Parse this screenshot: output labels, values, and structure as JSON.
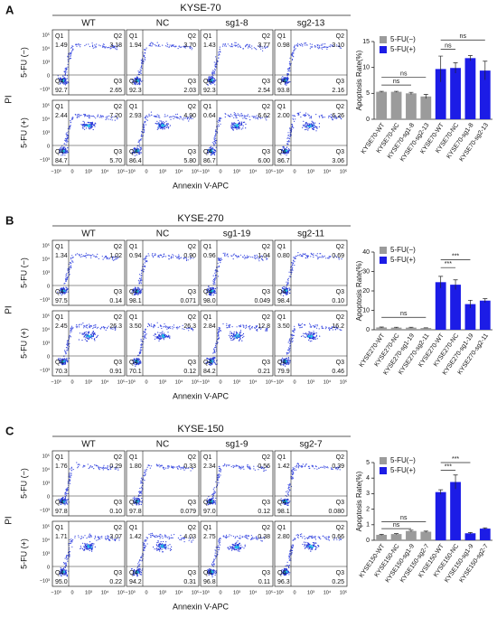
{
  "panels": [
    {
      "letter": "A",
      "title": "KYSE-70",
      "columns": [
        "WT",
        "NC",
        "sg1-8",
        "sg2-13"
      ],
      "rows": [
        "5-FU (−)",
        "5-FU (+)"
      ],
      "y_label": "PI",
      "x_label": "Annexin V-APC",
      "plots": [
        [
          [
            "1.49",
            "3.18",
            "2.65",
            "92.7"
          ],
          [
            "1.94",
            "3.70",
            "2.03",
            "92.3"
          ],
          [
            "1.43",
            "3.77",
            "2.54",
            "92.3"
          ],
          [
            "0.98",
            "3.10",
            "2.16",
            "93.8"
          ]
        ],
        [
          [
            "2.44",
            "7.20",
            "5.70",
            "84.7"
          ],
          [
            "2.93",
            "4.90",
            "5.80",
            "86.4"
          ],
          [
            "0.64",
            "6.62",
            "6.00",
            "86.7"
          ],
          [
            "2.00",
            "6.26",
            "3.06",
            "86.7"
          ]
        ]
      ]
    },
    {
      "letter": "B",
      "title": "KYSE-270",
      "columns": [
        "WT",
        "NC",
        "sg1-19",
        "sg2-11"
      ],
      "rows": [
        "5-FU (−)",
        "5-FU (+)"
      ],
      "y_label": "PI",
      "x_label": "Annexin V-APC",
      "plots": [
        [
          [
            "1.34",
            "1.02",
            "0.14",
            "97.5"
          ],
          [
            "0.94",
            "0.90",
            "0.071",
            "98.1"
          ],
          [
            "0.96",
            "1.04",
            "0.049",
            "98.0"
          ],
          [
            "0.80",
            "0.69",
            "0.10",
            "98.4"
          ]
        ],
        [
          [
            "2.45",
            "26.3",
            "0.91",
            "70.3"
          ],
          [
            "3.50",
            "26.3",
            "0.12",
            "70.1"
          ],
          [
            "2.84",
            "12.8",
            "0.21",
            "84.2"
          ],
          [
            "3.50",
            "16.2",
            "0.46",
            "79.9"
          ]
        ]
      ]
    },
    {
      "letter": "C",
      "title": "KYSE-150",
      "columns": [
        "WT",
        "NC",
        "sg1-9",
        "sg2-7"
      ],
      "rows": [
        "5-FU (−)",
        "5-FU (+)"
      ],
      "y_label": "PI",
      "x_label": "Annexin V-APC",
      "plots": [
        [
          [
            "1.76",
            "0.29",
            "0.10",
            "97.8"
          ],
          [
            "1.80",
            "0.33",
            "0.079",
            "97.8"
          ],
          [
            "2.34",
            "0.56",
            "0.12",
            "97.0"
          ],
          [
            "1.42",
            "0.39",
            "0.080",
            "98.1"
          ]
        ],
        [
          [
            "1.71",
            "3.07",
            "0.22",
            "95.0"
          ],
          [
            "1.42",
            "4.03",
            "0.31",
            "94.2"
          ],
          [
            "2.75",
            "0.38",
            "0.11",
            "96.8"
          ],
          [
            "2.80",
            "0.66",
            "0.25",
            "96.3"
          ]
        ]
      ]
    }
  ],
  "quadrant_labels": [
    "Q1",
    "Q2",
    "Q3",
    "Q4"
  ],
  "flow_xticks": [
    "−10³",
    "0",
    "10³",
    "10⁴",
    "10⁵"
  ],
  "flow_yticks": [
    "10⁵",
    "10⁴",
    "10³",
    "0",
    "−10³"
  ],
  "chart_data": [
    {
      "type": "bar",
      "y_label": "Apoptosis Rate(%)",
      "categories": [
        "KYSE70-WT",
        "KYSE70-NC",
        "KYSE70-sg1-8",
        "KYSE70-sg2-13",
        "KYSE70-WT",
        "KYSE70-NC",
        "KYSE70-sg1-8",
        "KYSE70-sg2-13"
      ],
      "series": [
        {
          "name": "5-FU(−)",
          "color": "#9b9b9b",
          "values": [
            5.3,
            5.3,
            5.0,
            4.4,
            null,
            null,
            null,
            null
          ],
          "errors": [
            0.1,
            0.1,
            0.2,
            0.4,
            null,
            null,
            null,
            null
          ]
        },
        {
          "name": "5-FU(+)",
          "color": "#1c1ce6",
          "values": [
            null,
            null,
            null,
            null,
            9.7,
            9.9,
            11.8,
            9.4
          ],
          "errors": [
            null,
            null,
            null,
            null,
            2.5,
            1.0,
            0.5,
            1.8
          ]
        }
      ],
      "ylim": [
        0,
        15
      ],
      "yticks": [
        0,
        5,
        10,
        15
      ],
      "significance": [
        "ns",
        "ns",
        "ns",
        "ns"
      ]
    },
    {
      "type": "bar",
      "y_label": "Apoptosis Rate(%)",
      "categories": [
        "KYSE270-WT",
        "KYSE270-NC",
        "KYSE270-sg1-19",
        "KYSE270-sg2-11",
        "KYSE270-WT",
        "KYSE270-NC",
        "KYSE270-sg1-19",
        "KYSE270-sg2-11"
      ],
      "series": [
        {
          "name": "5-FU(−)",
          "color": "#9b9b9b",
          "values": [
            1.2,
            1.1,
            1.1,
            0.9,
            null,
            null,
            null,
            null
          ],
          "errors": [
            0.2,
            0.2,
            0.2,
            0.1,
            null,
            null,
            null,
            null
          ]
        },
        {
          "name": "5-FU(+)",
          "color": "#1c1ce6",
          "values": [
            null,
            null,
            null,
            null,
            24.5,
            23.2,
            13.2,
            15.0
          ],
          "errors": [
            null,
            null,
            null,
            null,
            3.0,
            2.5,
            2.0,
            1.0
          ]
        }
      ],
      "ylim": [
        0,
        40
      ],
      "yticks": [
        0,
        10,
        20,
        30,
        40
      ],
      "significance": [
        "ns",
        "***",
        "***"
      ]
    },
    {
      "type": "bar",
      "y_label": "Apoptosis Rate(%)",
      "categories": [
        "KYSE150-WT",
        "KYSE150-NC",
        "KYSE150-sg1-9",
        "KYSE150-sg2-7",
        "KYSE150-WT",
        "KYSE150-NC",
        "KYSE150-sg1-9",
        "KYSE150-sg2-7"
      ],
      "series": [
        {
          "name": "5-FU(−)",
          "color": "#9b9b9b",
          "values": [
            0.35,
            0.4,
            0.6,
            0.55,
            null,
            null,
            null,
            null
          ],
          "errors": [
            0.03,
            0.03,
            0.05,
            0.04,
            null,
            null,
            null,
            null
          ]
        },
        {
          "name": "5-FU(+)",
          "color": "#1c1ce6",
          "values": [
            null,
            null,
            null,
            null,
            3.1,
            3.75,
            0.45,
            0.75
          ],
          "errors": [
            null,
            null,
            null,
            null,
            0.15,
            0.45,
            0.05,
            0.05
          ]
        }
      ],
      "ylim": [
        0,
        5
      ],
      "yticks": [
        0,
        1,
        2,
        3,
        4,
        5
      ],
      "significance": [
        "ns",
        "ns",
        "***",
        "***"
      ]
    }
  ]
}
